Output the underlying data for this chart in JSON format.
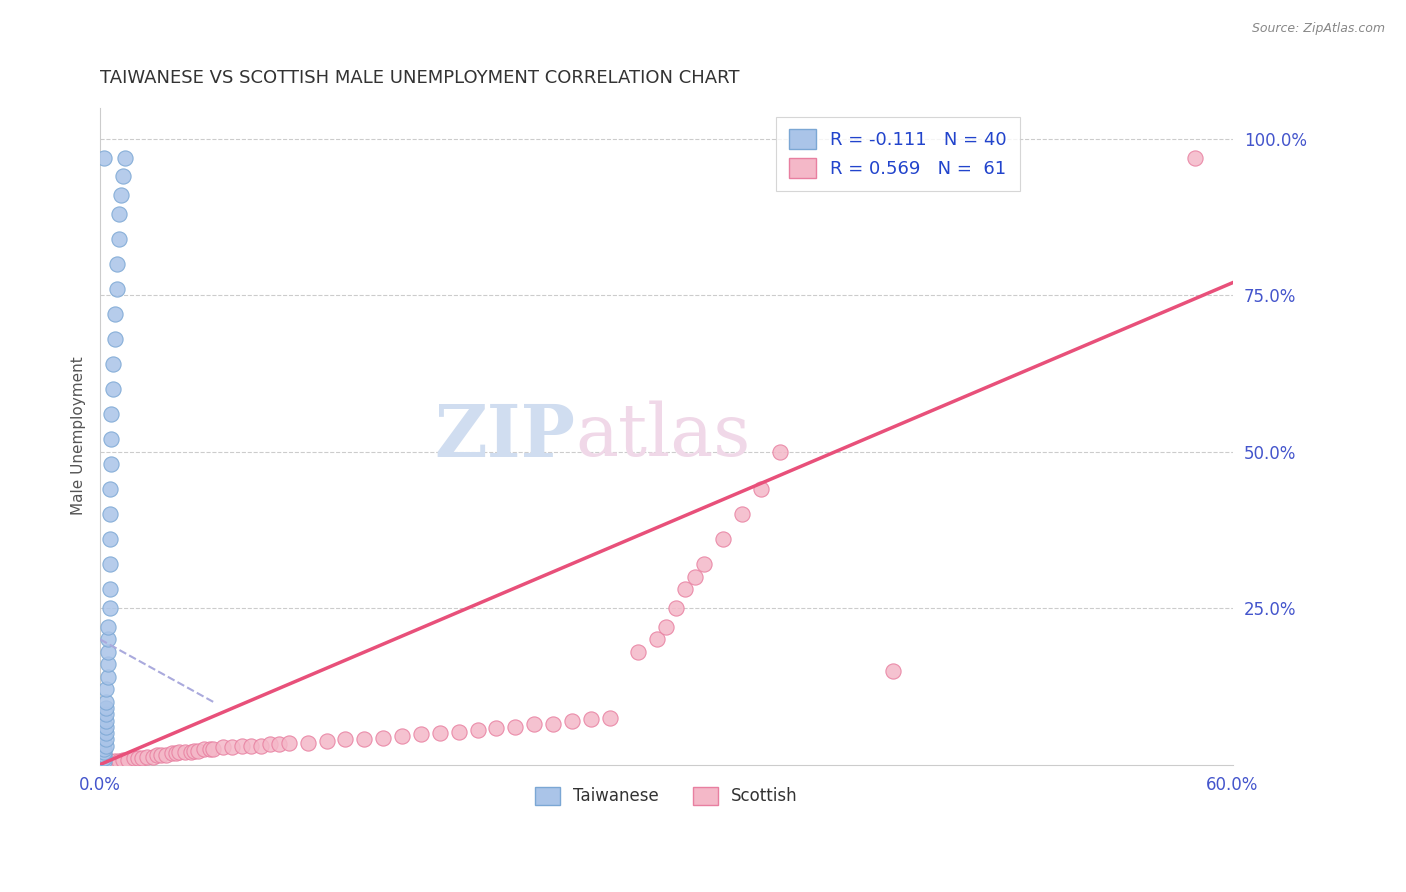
{
  "title": "TAIWANESE VS SCOTTISH MALE UNEMPLOYMENT CORRELATION CHART",
  "source": "Source: ZipAtlas.com",
  "ylabel_label": "Male Unemployment",
  "xlim": [
    0.0,
    0.6
  ],
  "ylim": [
    0.0,
    1.05
  ],
  "grid_color": "#cccccc",
  "background_color": "#ffffff",
  "taiwanese_color": "#aac4e8",
  "scottish_color": "#f4b8c8",
  "taiwanese_edge_color": "#7ba7d4",
  "scottish_edge_color": "#e87fa0",
  "regression_taiwanese_color": "#aaaadd",
  "regression_scottish_color": "#e8507a",
  "legend_r_taiwanese": "-0.111",
  "legend_n_taiwanese": "40",
  "legend_r_scottish": "0.569",
  "legend_n_scottish": "61",
  "watermark_zip": "ZIP",
  "watermark_atlas": "atlas",
  "taiwanese_points": [
    [
      0.002,
      0.005
    ],
    [
      0.002,
      0.01
    ],
    [
      0.002,
      0.015
    ],
    [
      0.002,
      0.02
    ],
    [
      0.002,
      0.025
    ],
    [
      0.003,
      0.03
    ],
    [
      0.003,
      0.04
    ],
    [
      0.003,
      0.05
    ],
    [
      0.003,
      0.06
    ],
    [
      0.003,
      0.07
    ],
    [
      0.003,
      0.08
    ],
    [
      0.003,
      0.09
    ],
    [
      0.003,
      0.1
    ],
    [
      0.003,
      0.12
    ],
    [
      0.004,
      0.14
    ],
    [
      0.004,
      0.16
    ],
    [
      0.004,
      0.18
    ],
    [
      0.004,
      0.2
    ],
    [
      0.004,
      0.22
    ],
    [
      0.005,
      0.25
    ],
    [
      0.005,
      0.28
    ],
    [
      0.005,
      0.32
    ],
    [
      0.005,
      0.36
    ],
    [
      0.005,
      0.4
    ],
    [
      0.005,
      0.44
    ],
    [
      0.006,
      0.48
    ],
    [
      0.006,
      0.52
    ],
    [
      0.006,
      0.56
    ],
    [
      0.007,
      0.6
    ],
    [
      0.007,
      0.64
    ],
    [
      0.008,
      0.68
    ],
    [
      0.008,
      0.72
    ],
    [
      0.009,
      0.76
    ],
    [
      0.009,
      0.8
    ],
    [
      0.01,
      0.84
    ],
    [
      0.01,
      0.88
    ],
    [
      0.011,
      0.91
    ],
    [
      0.012,
      0.94
    ],
    [
      0.013,
      0.97
    ],
    [
      0.002,
      0.97
    ]
  ],
  "scottish_points": [
    [
      0.005,
      0.005
    ],
    [
      0.008,
      0.005
    ],
    [
      0.01,
      0.005
    ],
    [
      0.012,
      0.008
    ],
    [
      0.015,
      0.008
    ],
    [
      0.018,
      0.01
    ],
    [
      0.02,
      0.01
    ],
    [
      0.022,
      0.01
    ],
    [
      0.025,
      0.012
    ],
    [
      0.028,
      0.012
    ],
    [
      0.03,
      0.015
    ],
    [
      0.032,
      0.015
    ],
    [
      0.035,
      0.015
    ],
    [
      0.038,
      0.018
    ],
    [
      0.04,
      0.018
    ],
    [
      0.042,
      0.02
    ],
    [
      0.045,
      0.02
    ],
    [
      0.048,
      0.02
    ],
    [
      0.05,
      0.022
    ],
    [
      0.052,
      0.022
    ],
    [
      0.055,
      0.025
    ],
    [
      0.058,
      0.025
    ],
    [
      0.06,
      0.025
    ],
    [
      0.065,
      0.028
    ],
    [
      0.07,
      0.028
    ],
    [
      0.075,
      0.03
    ],
    [
      0.08,
      0.03
    ],
    [
      0.085,
      0.03
    ],
    [
      0.09,
      0.032
    ],
    [
      0.095,
      0.032
    ],
    [
      0.1,
      0.035
    ],
    [
      0.11,
      0.035
    ],
    [
      0.12,
      0.038
    ],
    [
      0.13,
      0.04
    ],
    [
      0.14,
      0.04
    ],
    [
      0.15,
      0.042
    ],
    [
      0.16,
      0.045
    ],
    [
      0.17,
      0.048
    ],
    [
      0.18,
      0.05
    ],
    [
      0.19,
      0.052
    ],
    [
      0.2,
      0.055
    ],
    [
      0.21,
      0.058
    ],
    [
      0.22,
      0.06
    ],
    [
      0.23,
      0.065
    ],
    [
      0.24,
      0.065
    ],
    [
      0.25,
      0.07
    ],
    [
      0.26,
      0.072
    ],
    [
      0.27,
      0.075
    ],
    [
      0.285,
      0.18
    ],
    [
      0.295,
      0.2
    ],
    [
      0.3,
      0.22
    ],
    [
      0.305,
      0.25
    ],
    [
      0.31,
      0.28
    ],
    [
      0.315,
      0.3
    ],
    [
      0.32,
      0.32
    ],
    [
      0.33,
      0.36
    ],
    [
      0.34,
      0.4
    ],
    [
      0.35,
      0.44
    ],
    [
      0.36,
      0.5
    ],
    [
      0.42,
      0.15
    ],
    [
      0.58,
      0.97
    ]
  ],
  "sc_regression": [
    0.0,
    0.6,
    0.0,
    0.77
  ],
  "tw_regression": [
    0.0,
    0.06,
    0.18,
    0.1
  ]
}
